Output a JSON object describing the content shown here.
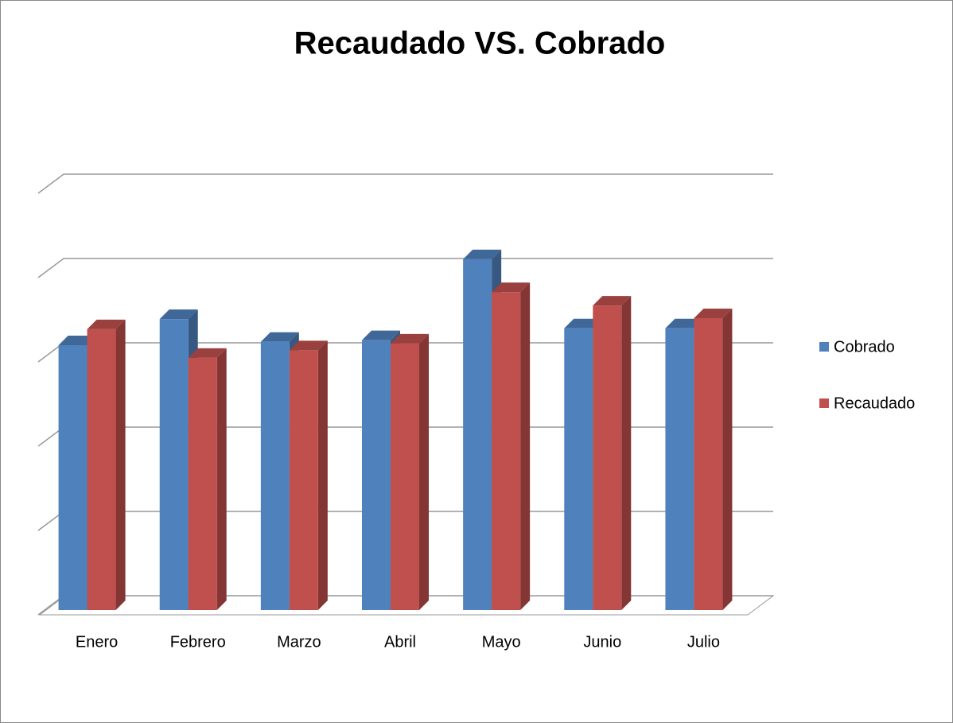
{
  "chart_data": {
    "type": "bar3d",
    "title": "Recaudado VS. Cobrado",
    "categories": [
      "Enero",
      "Febrero",
      "Marzo",
      "Abril",
      "Mayo",
      "Junio",
      "Julio"
    ],
    "series": [
      {
        "name": "Cobrado",
        "color": "#4f81bd",
        "values": [
          3.17,
          3.48,
          3.21,
          3.23,
          4.19,
          3.37,
          3.37
        ]
      },
      {
        "name": "Recaudado",
        "color": "#c0504d",
        "values": [
          3.36,
          3.02,
          3.11,
          3.19,
          3.8,
          3.64,
          3.49
        ]
      }
    ],
    "ylim": [
      0,
      5
    ],
    "yticks": [
      0,
      1,
      2,
      3,
      4,
      5
    ],
    "grid": true,
    "legend": "right"
  }
}
